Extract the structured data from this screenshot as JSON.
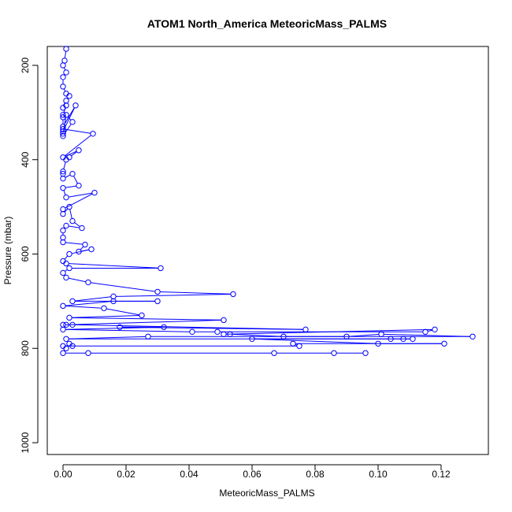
{
  "chart_data": {
    "type": "line",
    "title": "ATOM1 North_America MeteoricMass_PALMS",
    "xlabel": "MeteoricMass_PALMS",
    "ylabel": "Pressure (mbar)",
    "xlim": [
      -0.005,
      0.135
    ],
    "ylim": [
      1025,
      160
    ],
    "y_reversed": true,
    "grid": false,
    "x_ticks": [
      0.0,
      0.02,
      0.04,
      0.06,
      0.08,
      0.1,
      0.12
    ],
    "x_tick_labels": [
      "0.00",
      "0.02",
      "0.04",
      "0.06",
      "0.08",
      "0.10",
      "0.12"
    ],
    "y_ticks": [
      200,
      400,
      600,
      800,
      1000
    ],
    "y_tick_labels": [
      "200",
      "400",
      "600",
      "800",
      "1000"
    ],
    "series_color": "#0000ff",
    "series": [
      {
        "x": [
          0.001,
          0.0005,
          0.0,
          0.001,
          0.0,
          0.0,
          0.001,
          0.002,
          0.001,
          0.0,
          0.001,
          0.0,
          0.0,
          0.0,
          0.004,
          0.0,
          0.0,
          0.001,
          0.003,
          0.0,
          0.0,
          0.0095,
          0.0,
          0.005,
          0.002,
          0.001,
          0.0,
          0.0,
          0.0,
          0.003,
          0.005,
          0.0,
          0.001,
          0.01,
          0.0,
          0.0,
          0.002,
          0.003,
          0.006,
          0.001,
          0.0,
          0.0,
          0.0,
          0.007,
          0.005,
          0.009,
          0.002,
          0.0,
          0.001,
          0.031,
          0.002,
          0.0,
          0.001,
          0.008,
          0.03,
          0.054,
          0.016,
          0.003,
          0.03,
          0.016,
          0.0,
          0.013,
          0.025,
          0.002,
          0.051,
          0.001,
          0.0,
          0.003,
          0.077,
          0.018,
          0.032,
          0.0,
          0.041,
          0.049,
          0.115,
          0.118,
          0.051,
          0.053,
          0.07,
          0.09,
          0.101,
          0.13,
          0.027,
          0.001,
          0.104,
          0.108,
          0.111,
          0.06,
          0.1,
          0.121,
          0.073,
          0.075,
          0.0,
          0.003,
          0.002,
          0.001,
          0.0,
          0.008,
          0.067,
          0.086,
          0.096
        ],
        "y": [
          165,
          190,
          200,
          215,
          225,
          245,
          260,
          265,
          275,
          290,
          285,
          305,
          310,
          330,
          285,
          340,
          345,
          305,
          320,
          350,
          335,
          345,
          395,
          380,
          395,
          400,
          425,
          430,
          440,
          430,
          455,
          460,
          480,
          470,
          505,
          515,
          500,
          530,
          545,
          540,
          550,
          565,
          575,
          580,
          595,
          590,
          600,
          615,
          620,
          630,
          630,
          640,
          650,
          660,
          680,
          685,
          690,
          700,
          700,
          700,
          710,
          715,
          730,
          735,
          740,
          750,
          750,
          750,
          760,
          755,
          755,
          760,
          765,
          765,
          765,
          760,
          770,
          770,
          775,
          775,
          770,
          775,
          775,
          780,
          780,
          780,
          780,
          780,
          790,
          790,
          790,
          795,
          795,
          795,
          790,
          800,
          810,
          810,
          810,
          810,
          810
        ]
      }
    ]
  }
}
